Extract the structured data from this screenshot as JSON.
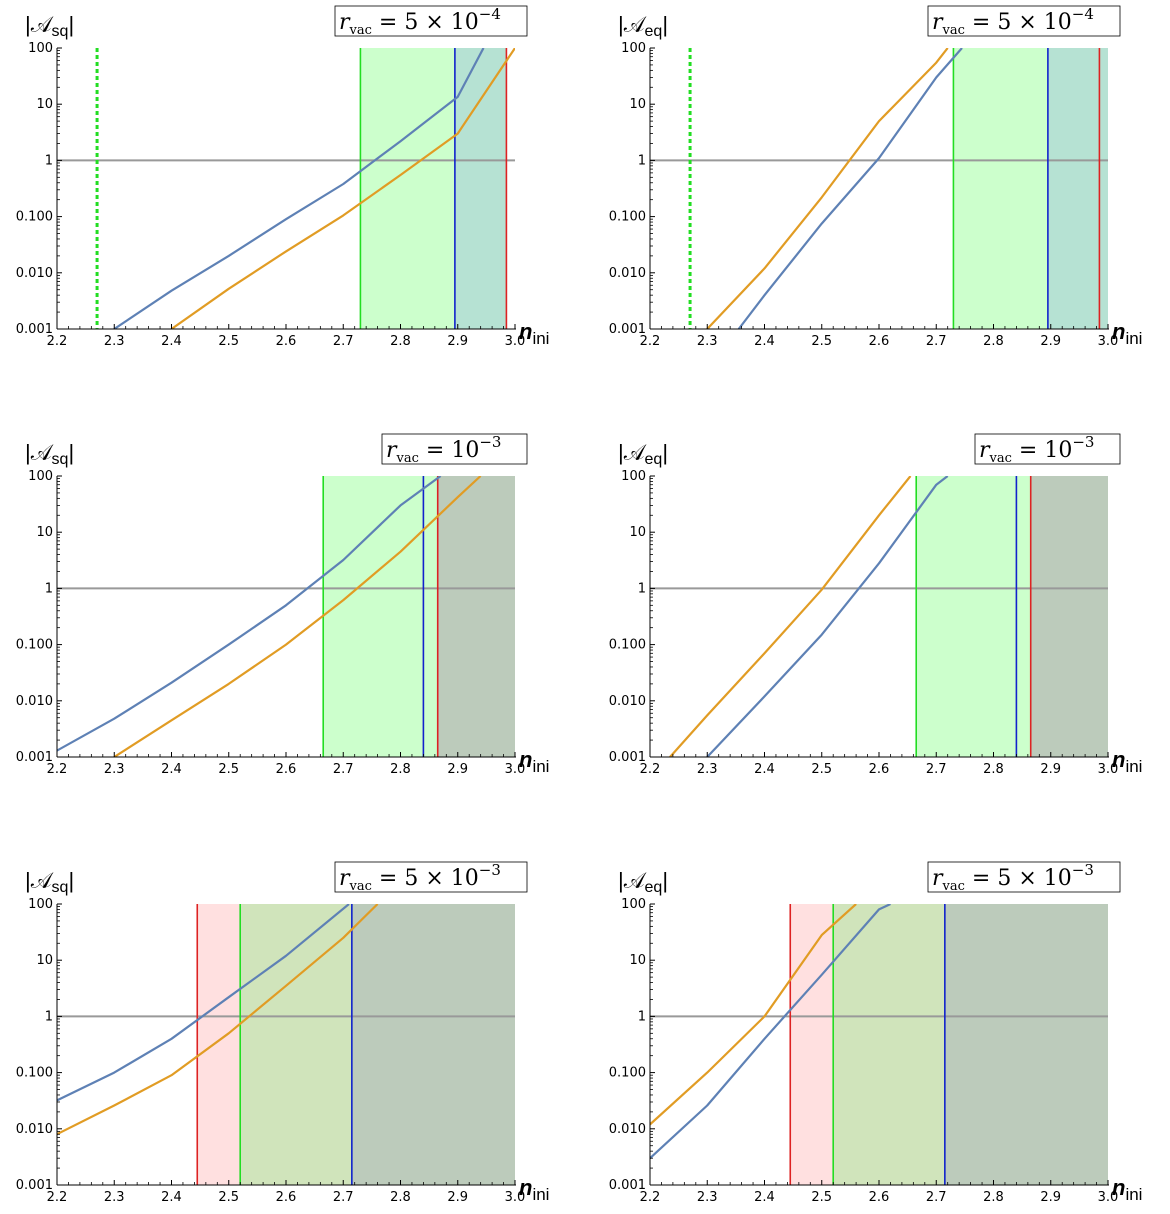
{
  "colors": {
    "curve_blue": "#5e81b5",
    "curve_orange": "#e19c24",
    "line_green": "#22dd22",
    "line_green_dotted": "#22dd22",
    "line_blue": "#1122cc",
    "line_red": "#dd2222",
    "region_green": "#ccffcc",
    "region_red": "#ffe0e0",
    "region_olive": "#d0e4bb",
    "region_teal": "#b6e2d3",
    "region_gray": "#bccbbb",
    "unity_line": "#999999"
  },
  "chart_data": [
    {
      "type": "line",
      "ylabel": "|𝒜sq|",
      "ylabel_main": "|𝒜",
      "ylabel_sub": "sq",
      "xlabel": "n",
      "xlabel_sub": "ini",
      "annotation": "r_vac = 5 × 10^-4",
      "annotation_parts": {
        "base": "5 × 10",
        "exp": "−4"
      },
      "xlim": [
        2.2,
        3.0
      ],
      "ylim": [
        0.001,
        100
      ],
      "yscale": "log",
      "xticks": [
        "2.2",
        "2.3",
        "2.4",
        "2.5",
        "2.6",
        "2.7",
        "2.8",
        "2.9",
        "3.0"
      ],
      "yticks": [
        "0.001",
        "0.010",
        "0.100",
        "1",
        "10",
        "100"
      ],
      "series": [
        {
          "color": "curve_blue",
          "x": [
            2.3,
            2.4,
            2.5,
            2.6,
            2.7,
            2.8,
            2.9,
            2.945
          ],
          "y": [
            0.001,
            0.0048,
            0.02,
            0.09,
            0.38,
            2.2,
            13.5,
            100
          ]
        },
        {
          "color": "curve_orange",
          "x": [
            2.4,
            2.5,
            2.6,
            2.7,
            2.8,
            2.9,
            3.0
          ],
          "y": [
            0.001,
            0.0052,
            0.024,
            0.105,
            0.55,
            3.0,
            100
          ]
        }
      ],
      "hline": 1,
      "vlines": [
        {
          "x": 2.27,
          "color": "line_green_dotted",
          "dashed": true
        },
        {
          "x": 2.73,
          "color": "line_green"
        },
        {
          "x": 2.895,
          "color": "line_blue"
        },
        {
          "x": 2.985,
          "color": "line_red"
        }
      ],
      "regions": [
        {
          "x0": 2.73,
          "x1": 2.895,
          "color": "region_green"
        },
        {
          "x0": 2.895,
          "x1": 2.985,
          "color": "region_teal"
        }
      ]
    },
    {
      "type": "line",
      "ylabel": "|𝒜eq|",
      "ylabel_main": "|𝒜",
      "ylabel_sub": "eq",
      "xlabel": "n",
      "xlabel_sub": "ini",
      "annotation": "r_vac = 5 × 10^-4",
      "annotation_parts": {
        "base": "5 × 10",
        "exp": "−4"
      },
      "xlim": [
        2.2,
        3.0
      ],
      "ylim": [
        0.001,
        100
      ],
      "yscale": "log",
      "xticks": [
        "2.2",
        "2.3",
        "2.4",
        "2.5",
        "2.6",
        "2.7",
        "2.8",
        "2.9",
        "3.0"
      ],
      "yticks": [
        "0.001",
        "0.010",
        "0.100",
        "1",
        "10",
        "100"
      ],
      "series": [
        {
          "color": "curve_orange",
          "x": [
            2.3,
            2.4,
            2.5,
            2.6,
            2.7,
            2.72
          ],
          "y": [
            0.001,
            0.012,
            0.22,
            5.0,
            55,
            100
          ]
        },
        {
          "color": "curve_blue",
          "x": [
            2.355,
            2.4,
            2.5,
            2.6,
            2.7,
            2.745
          ],
          "y": [
            0.001,
            0.004,
            0.075,
            1.1,
            30,
            100
          ]
        }
      ],
      "hline": 1,
      "vlines": [
        {
          "x": 2.27,
          "color": "line_green_dotted",
          "dashed": true
        },
        {
          "x": 2.73,
          "color": "line_green"
        },
        {
          "x": 2.895,
          "color": "line_blue"
        },
        {
          "x": 2.985,
          "color": "line_red"
        }
      ],
      "regions": [
        {
          "x0": 2.73,
          "x1": 2.895,
          "color": "region_green"
        },
        {
          "x0": 2.895,
          "x1": 3.0,
          "color": "region_teal"
        }
      ]
    },
    {
      "type": "line",
      "ylabel": "|𝒜sq|",
      "ylabel_main": "|𝒜",
      "ylabel_sub": "sq",
      "xlabel": "n",
      "xlabel_sub": "ini",
      "annotation": "r_vac = 10^-3",
      "annotation_parts": {
        "base": "10",
        "exp": "−3"
      },
      "xlim": [
        2.2,
        3.0
      ],
      "ylim": [
        0.001,
        100
      ],
      "yscale": "log",
      "xticks": [
        "2.2",
        "2.3",
        "2.4",
        "2.5",
        "2.6",
        "2.7",
        "2.8",
        "2.9",
        "3.0"
      ],
      "yticks": [
        "0.001",
        "0.010",
        "0.100",
        "1",
        "10",
        "100"
      ],
      "series": [
        {
          "color": "curve_blue",
          "x": [
            2.2,
            2.3,
            2.4,
            2.5,
            2.6,
            2.7,
            2.8,
            2.87
          ],
          "y": [
            0.0013,
            0.0048,
            0.021,
            0.1,
            0.5,
            3.2,
            30,
            100
          ]
        },
        {
          "color": "curve_orange",
          "x": [
            2.3,
            2.4,
            2.5,
            2.6,
            2.7,
            2.8,
            2.9,
            2.94
          ],
          "y": [
            0.001,
            0.0045,
            0.02,
            0.1,
            0.62,
            4.5,
            42,
            100
          ]
        }
      ],
      "hline": 1,
      "vlines": [
        {
          "x": 2.665,
          "color": "line_green"
        },
        {
          "x": 2.84,
          "color": "line_blue"
        },
        {
          "x": 2.865,
          "color": "line_red"
        }
      ],
      "regions": [
        {
          "x0": 2.665,
          "x1": 2.865,
          "color": "region_green"
        },
        {
          "x0": 2.865,
          "x1": 3.0,
          "color": "region_gray"
        }
      ]
    },
    {
      "type": "line",
      "ylabel": "|𝒜eq|",
      "ylabel_main": "|𝒜",
      "ylabel_sub": "eq",
      "xlabel": "n",
      "xlabel_sub": "ini",
      "annotation": "r_vac = 10^-3",
      "annotation_parts": {
        "base": "10",
        "exp": "−3"
      },
      "xlim": [
        2.2,
        3.0
      ],
      "ylim": [
        0.001,
        100
      ],
      "yscale": "log",
      "xticks": [
        "2.2",
        "2.3",
        "2.4",
        "2.5",
        "2.6",
        "2.7",
        "2.8",
        "2.9",
        "3.0"
      ],
      "yticks": [
        "0.001",
        "0.010",
        "0.100",
        "1",
        "10",
        "100"
      ],
      "series": [
        {
          "color": "curve_orange",
          "x": [
            2.235,
            2.3,
            2.4,
            2.5,
            2.6,
            2.655
          ],
          "y": [
            0.001,
            0.0055,
            0.07,
            0.95,
            20,
            100
          ]
        },
        {
          "color": "curve_blue",
          "x": [
            2.3,
            2.4,
            2.5,
            2.6,
            2.7,
            2.72
          ],
          "y": [
            0.001,
            0.012,
            0.15,
            2.8,
            70,
            100
          ]
        }
      ],
      "hline": 1,
      "vlines": [
        {
          "x": 2.665,
          "color": "line_green"
        },
        {
          "x": 2.84,
          "color": "line_blue"
        },
        {
          "x": 2.865,
          "color": "line_red"
        }
      ],
      "regions": [
        {
          "x0": 2.665,
          "x1": 2.865,
          "color": "region_green"
        },
        {
          "x0": 2.865,
          "x1": 3.0,
          "color": "region_gray"
        }
      ]
    },
    {
      "type": "line",
      "ylabel": "|𝒜sq|",
      "ylabel_main": "|𝒜",
      "ylabel_sub": "sq",
      "xlabel": "n",
      "xlabel_sub": "ini",
      "annotation": "r_vac = 5 × 10^-3",
      "annotation_parts": {
        "base": "5 × 10",
        "exp": "−3"
      },
      "xlim": [
        2.2,
        3.0
      ],
      "ylim": [
        0.001,
        100
      ],
      "yscale": "log",
      "xticks": [
        "2.2",
        "2.3",
        "2.4",
        "2.5",
        "2.6",
        "2.7",
        "2.8",
        "2.9",
        "3.0"
      ],
      "yticks": [
        "0.001",
        "0.010",
        "0.100",
        "1",
        "10",
        "100"
      ],
      "series": [
        {
          "color": "curve_blue",
          "x": [
            2.2,
            2.3,
            2.4,
            2.5,
            2.6,
            2.71
          ],
          "y": [
            0.032,
            0.1,
            0.4,
            2.2,
            12,
            100
          ]
        },
        {
          "color": "curve_orange",
          "x": [
            2.2,
            2.3,
            2.4,
            2.5,
            2.6,
            2.7,
            2.76
          ],
          "y": [
            0.008,
            0.026,
            0.09,
            0.5,
            3.5,
            25,
            100
          ]
        }
      ],
      "hline": 1,
      "vlines": [
        {
          "x": 2.445,
          "color": "line_red"
        },
        {
          "x": 2.52,
          "color": "line_green"
        },
        {
          "x": 2.715,
          "color": "line_blue"
        }
      ],
      "regions": [
        {
          "x0": 2.445,
          "x1": 2.52,
          "color": "region_red"
        },
        {
          "x0": 2.52,
          "x1": 2.715,
          "color": "region_olive"
        },
        {
          "x0": 2.715,
          "x1": 3.0,
          "color": "region_gray"
        }
      ]
    },
    {
      "type": "line",
      "ylabel": "|𝒜eq|",
      "ylabel_main": "|𝒜",
      "ylabel_sub": "eq",
      "xlabel": "n",
      "xlabel_sub": "ini",
      "annotation": "r_vac = 5 × 10^-3",
      "annotation_parts": {
        "base": "5 × 10",
        "exp": "−3"
      },
      "xlim": [
        2.2,
        3.0
      ],
      "ylim": [
        0.001,
        100
      ],
      "yscale": "log",
      "xticks": [
        "2.2",
        "2.3",
        "2.4",
        "2.5",
        "2.6",
        "2.7",
        "2.8",
        "2.9",
        "3.0"
      ],
      "yticks": [
        "0.001",
        "0.010",
        "0.100",
        "1",
        "10",
        "100"
      ],
      "series": [
        {
          "color": "curve_orange",
          "x": [
            2.2,
            2.3,
            2.4,
            2.5,
            2.56
          ],
          "y": [
            0.012,
            0.1,
            1.0,
            28,
            100
          ]
        },
        {
          "color": "curve_blue",
          "x": [
            2.2,
            2.3,
            2.4,
            2.5,
            2.6,
            2.62
          ],
          "y": [
            0.003,
            0.026,
            0.4,
            5.5,
            80,
            100
          ]
        }
      ],
      "hline": 1,
      "vlines": [
        {
          "x": 2.445,
          "color": "line_red"
        },
        {
          "x": 2.52,
          "color": "line_green"
        },
        {
          "x": 2.715,
          "color": "line_blue"
        }
      ],
      "regions": [
        {
          "x0": 2.445,
          "x1": 2.52,
          "color": "region_red"
        },
        {
          "x0": 2.52,
          "x1": 2.715,
          "color": "region_olive"
        },
        {
          "x0": 2.715,
          "x1": 3.0,
          "color": "region_gray"
        }
      ]
    }
  ]
}
